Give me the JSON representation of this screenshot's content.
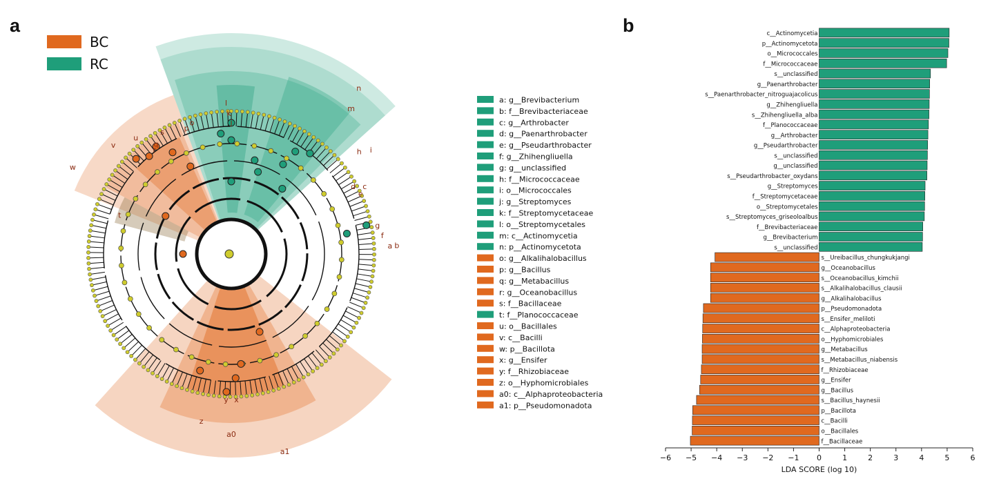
{
  "panels": {
    "a": "a",
    "b": "b"
  },
  "colors": {
    "BC": "#e0691f",
    "RC": "#1f9e7a",
    "node": "#cfcc2e"
  },
  "legend_groups": [
    {
      "label": "BC",
      "color": "#e0691f"
    },
    {
      "label": "RC",
      "color": "#1f9e7a"
    }
  ],
  "cladogram_legend": [
    {
      "key": "a: g__Brevibacterium",
      "group": "RC"
    },
    {
      "key": "b: f__Brevibacteriaceae",
      "group": "RC"
    },
    {
      "key": "c: g__Arthrobacter",
      "group": "RC"
    },
    {
      "key": "d: g__Paenarthrobacter",
      "group": "RC"
    },
    {
      "key": "e: g__Pseudarthrobacter",
      "group": "RC"
    },
    {
      "key": "f: g__Zhihengliuella",
      "group": "RC"
    },
    {
      "key": "g: g__unclassified",
      "group": "RC"
    },
    {
      "key": "h: f__Micrococcaceae",
      "group": "RC"
    },
    {
      "key": "i: o__Micrococcales",
      "group": "RC"
    },
    {
      "key": "j: g__Streptomyces",
      "group": "RC"
    },
    {
      "key": "k: f__Streptomycetaceae",
      "group": "RC"
    },
    {
      "key": "l: o__Streptomycetales",
      "group": "RC"
    },
    {
      "key": "m: c__Actinomycetia",
      "group": "RC"
    },
    {
      "key": "n: p__Actinomycetota",
      "group": "RC"
    },
    {
      "key": "o: g__Alkalihalobacillus",
      "group": "BC"
    },
    {
      "key": "p: g__Bacillus",
      "group": "BC"
    },
    {
      "key": "q: g__Metabacillus",
      "group": "BC"
    },
    {
      "key": "r: g__Oceanobacillus",
      "group": "BC"
    },
    {
      "key": "s: f__Bacillaceae",
      "group": "BC"
    },
    {
      "key": "t: f__Planococcaceae",
      "group": "RC"
    },
    {
      "key": "u: o__Bacillales",
      "group": "BC"
    },
    {
      "key": "v: c__Bacilli",
      "group": "BC"
    },
    {
      "key": "w: p__Bacillota",
      "group": "BC"
    },
    {
      "key": "x: g__Ensifer",
      "group": "BC"
    },
    {
      "key": "y: f__Rhizobiaceae",
      "group": "BC"
    },
    {
      "key": "z: o__Hyphomicrobiales",
      "group": "BC"
    },
    {
      "key": "a0: c__Alphaproteobacteria",
      "group": "BC"
    },
    {
      "key": "a1: p__Pseudomonadota",
      "group": "BC"
    }
  ],
  "clade_letters": [
    "l",
    "k",
    "j",
    "n",
    "m",
    "h",
    "i",
    "c",
    "d",
    "e",
    "g",
    "f",
    "a",
    "b",
    "s",
    "u",
    "v",
    "w",
    "o",
    "p",
    "q",
    "r",
    "t",
    "x",
    "y",
    "z",
    "a0",
    "a1"
  ],
  "chart_data": {
    "type": "bar",
    "orientation": "horizontal",
    "xlabel": "LDA SCORE (log 10)",
    "xlim": [
      -6,
      6
    ],
    "xticks": [
      -6,
      -5,
      -4,
      -3,
      -2,
      -1,
      0,
      1,
      2,
      3,
      4,
      5,
      6
    ],
    "categories": [
      "c__Actinomycetia",
      "p__Actinomycetota",
      "o__Micrococcales",
      "f__Micrococcaceae",
      "s__unclassified",
      "g__Paenarthrobacter",
      "s__Paenarthrobacter_nitroguajacolicus",
      "g__Zhihengliuella",
      "s__Zhihengliuella_alba",
      "f__Planococcaceae",
      "g__Arthrobacter",
      "g__Pseudarthrobacter",
      "s__unclassified",
      "g__unclassified",
      "s__Pseudarthrobacter_oxydans",
      "g__Streptomyces",
      "f__Streptomycetaceae",
      "o__Streptomycetales",
      "s__Streptomyces_griseoloalbus",
      "f__Brevibacteriaceae",
      "g__Brevibacterium",
      "s__unclassified",
      "s__Ureibacillus_chungkukjangi",
      "g__Oceanobacillus",
      "s__Oceanobacillus_kimchii",
      "s__Alkalihalobacillus_clausii",
      "g__Alkalihalobacillus",
      "p__Pseudomonadota",
      "s__Ensifer_meliloti",
      "c__Alphaproteobacteria",
      "o__Hyphomicrobiales",
      "g__Metabacillus",
      "s__Metabacillus_niabensis",
      "f__Rhizobiaceae",
      "g__Ensifer",
      "g__Bacillus",
      "s__Bacillus_haynesii",
      "p__Bacillota",
      "c__Bacilli",
      "o__Bacillales",
      "f__Bacillaceae"
    ],
    "values": [
      5.08,
      5.07,
      5.03,
      4.98,
      4.35,
      4.32,
      4.31,
      4.3,
      4.29,
      4.27,
      4.25,
      4.24,
      4.23,
      4.22,
      4.21,
      4.14,
      4.13,
      4.12,
      4.11,
      4.05,
      4.04,
      4.03,
      -4.07,
      -4.24,
      -4.24,
      -4.24,
      -4.24,
      -4.52,
      -4.54,
      -4.55,
      -4.56,
      -4.57,
      -4.57,
      -4.6,
      -4.63,
      -4.67,
      -4.79,
      -4.94,
      -4.95,
      -4.96,
      -5.03
    ],
    "groups": [
      "RC",
      "RC",
      "RC",
      "RC",
      "RC",
      "RC",
      "RC",
      "RC",
      "RC",
      "RC",
      "RC",
      "RC",
      "RC",
      "RC",
      "RC",
      "RC",
      "RC",
      "RC",
      "RC",
      "RC",
      "RC",
      "RC",
      "BC",
      "BC",
      "BC",
      "BC",
      "BC",
      "BC",
      "BC",
      "BC",
      "BC",
      "BC",
      "BC",
      "BC",
      "BC",
      "BC",
      "BC",
      "BC",
      "BC",
      "BC",
      "BC"
    ],
    "series": [
      {
        "name": "BC",
        "color": "#e0691f"
      },
      {
        "name": "RC",
        "color": "#1f9e7a"
      }
    ]
  }
}
